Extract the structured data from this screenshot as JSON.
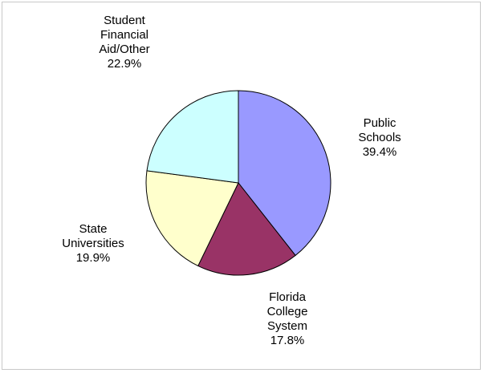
{
  "chart_data": {
    "type": "pie",
    "title": "",
    "start_angle_deg": 0,
    "direction": "clockwise",
    "slices": [
      {
        "lines": [
          "Public",
          "Schools"
        ],
        "value": 39.4,
        "value_label": "39.4%",
        "color": "#9999ff"
      },
      {
        "lines": [
          "Florida",
          "College",
          "System"
        ],
        "value": 17.8,
        "value_label": "17.8%",
        "color": "#993366"
      },
      {
        "lines": [
          "State",
          "Universities"
        ],
        "value": 19.9,
        "value_label": "19.9%",
        "color": "#ffffcc"
      },
      {
        "lines": [
          "Student",
          "Financial",
          "Aid/Other"
        ],
        "value": 22.9,
        "value_label": "22.9%",
        "color": "#ccffff"
      }
    ]
  }
}
